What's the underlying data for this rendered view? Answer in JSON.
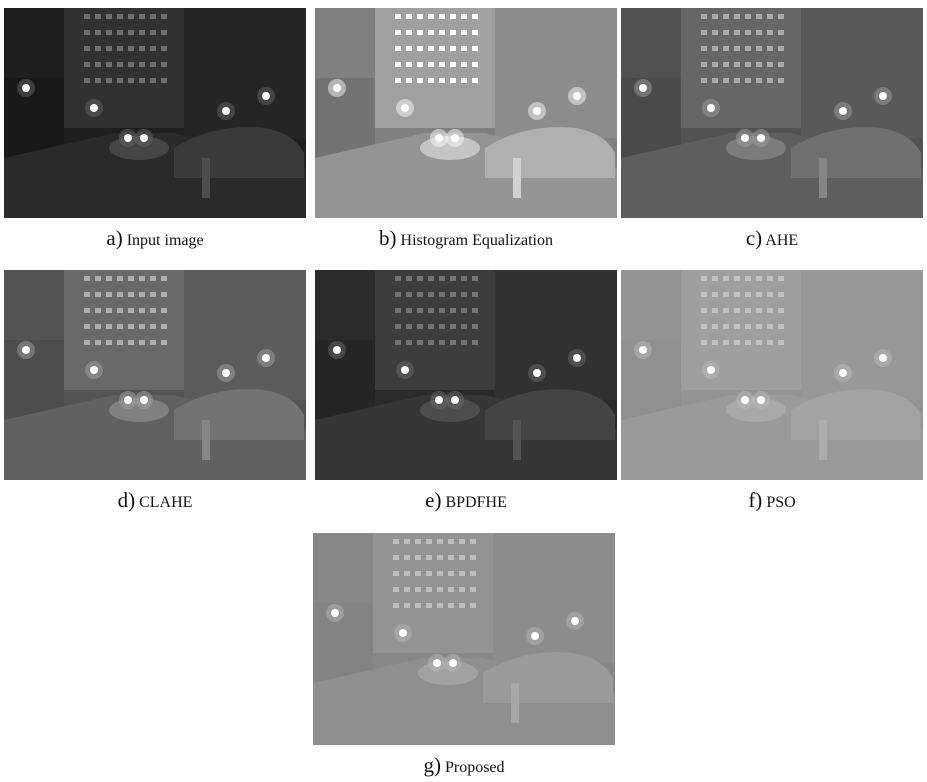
{
  "panels": [
    {
      "label": "a)",
      "text": "Input image"
    },
    {
      "label": "b)",
      "text": "Histogram Equalization"
    },
    {
      "label": "c)",
      "text": "AHE"
    },
    {
      "label": "d)",
      "text": "CLAHE"
    },
    {
      "label": "e)",
      "text": "BPDFHE"
    },
    {
      "label": "f)",
      "text": "PSO"
    },
    {
      "label": "g)",
      "text": "Proposed"
    }
  ]
}
